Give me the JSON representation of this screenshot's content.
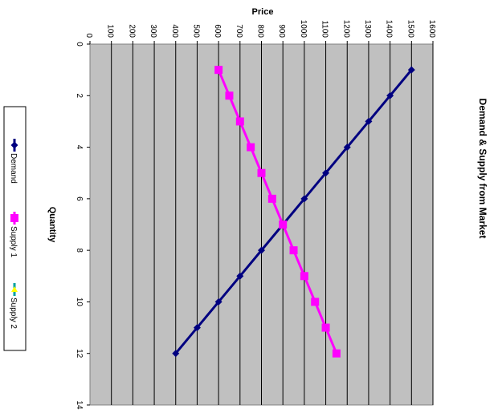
{
  "chart_data": {
    "type": "line",
    "title": "Demand & Supply from Market",
    "xlabel": "Quantity",
    "ylabel": "Price",
    "xlim": [
      0,
      14
    ],
    "ylim": [
      0,
      1600
    ],
    "x_ticks": [
      0,
      2,
      4,
      6,
      8,
      10,
      12,
      14
    ],
    "y_ticks": [
      0,
      100,
      200,
      300,
      400,
      500,
      600,
      700,
      800,
      900,
      1000,
      1100,
      1200,
      1300,
      1400,
      1500,
      1600
    ],
    "grid": true,
    "orientation": "rotated-90-clockwise",
    "legend_position": "left",
    "series": [
      {
        "name": "Demand",
        "color": "#000080",
        "marker": "diamond",
        "points": [
          [
            1,
            1500
          ],
          [
            2,
            1400
          ],
          [
            3,
            1300
          ],
          [
            4,
            1200
          ],
          [
            5,
            1100
          ],
          [
            6,
            1000
          ],
          [
            7,
            900
          ],
          [
            8,
            800
          ],
          [
            9,
            700
          ],
          [
            10,
            600
          ],
          [
            11,
            500
          ],
          [
            12,
            400
          ]
        ]
      },
      {
        "name": "Supply 1",
        "color": "#ff00ff",
        "marker": "square",
        "points": [
          [
            1,
            600
          ],
          [
            2,
            650
          ],
          [
            3,
            700
          ],
          [
            4,
            750
          ],
          [
            5,
            800
          ],
          [
            6,
            850
          ],
          [
            7,
            900
          ],
          [
            8,
            950
          ],
          [
            9,
            1000
          ],
          [
            10,
            1050
          ],
          [
            11,
            1100
          ],
          [
            12,
            1150
          ]
        ]
      },
      {
        "name": "Supply 2",
        "color": "#00a0a0",
        "marker_color": "#ffff00",
        "marker": "triangle",
        "points": []
      }
    ]
  }
}
